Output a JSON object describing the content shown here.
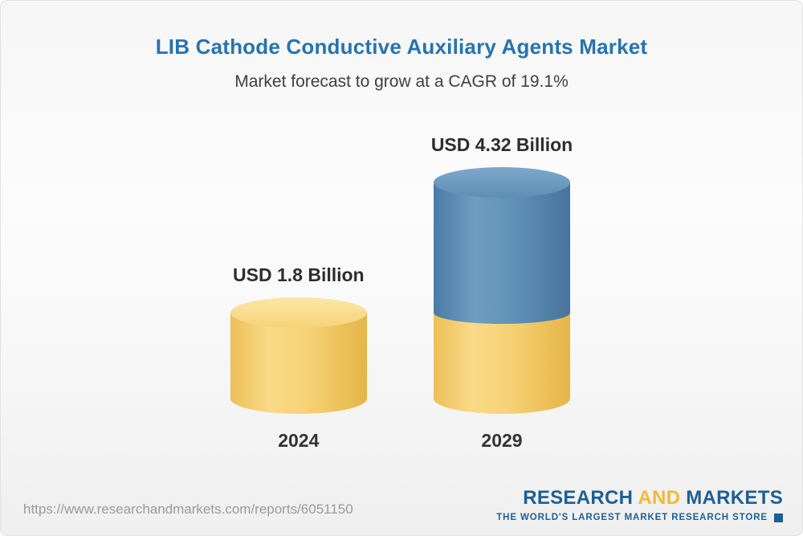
{
  "header": {
    "title": "LIB Cathode Conductive Auxiliary Agents Market",
    "subtitle": "Market forecast to grow at a CAGR of 19.1%",
    "title_color": "#2673b3"
  },
  "chart_data": {
    "type": "bar",
    "variant": "3d-cylinder",
    "title": "LIB Cathode Conductive Auxiliary Agents Market",
    "subtitle": "Market forecast to grow at a CAGR of 19.1%",
    "cagr_percent": 19.1,
    "unit": "USD Billion",
    "categories": [
      "2024",
      "2029"
    ],
    "values": [
      1.8,
      4.32
    ],
    "value_labels": [
      "USD 1.8 Billion",
      "USD 4.32 Billion"
    ],
    "legend_position": "none",
    "grid": false,
    "colors": {
      "base_segment": "#F5CE6C",
      "growth_segment": "#5787B2"
    },
    "notes": "2029 bar stacks the 2024 base value (yellow) with incremental growth (blue)"
  },
  "footer": {
    "url": "https://www.researchandmarkets.com/reports/6051150",
    "logo": {
      "research": "RESEARCH",
      "and": "AND",
      "markets": "MARKETS",
      "tagline": "THE WORLD'S LARGEST MARKET RESEARCH STORE",
      "blue": "#1c5f95",
      "gold": "#f3b73c"
    }
  }
}
